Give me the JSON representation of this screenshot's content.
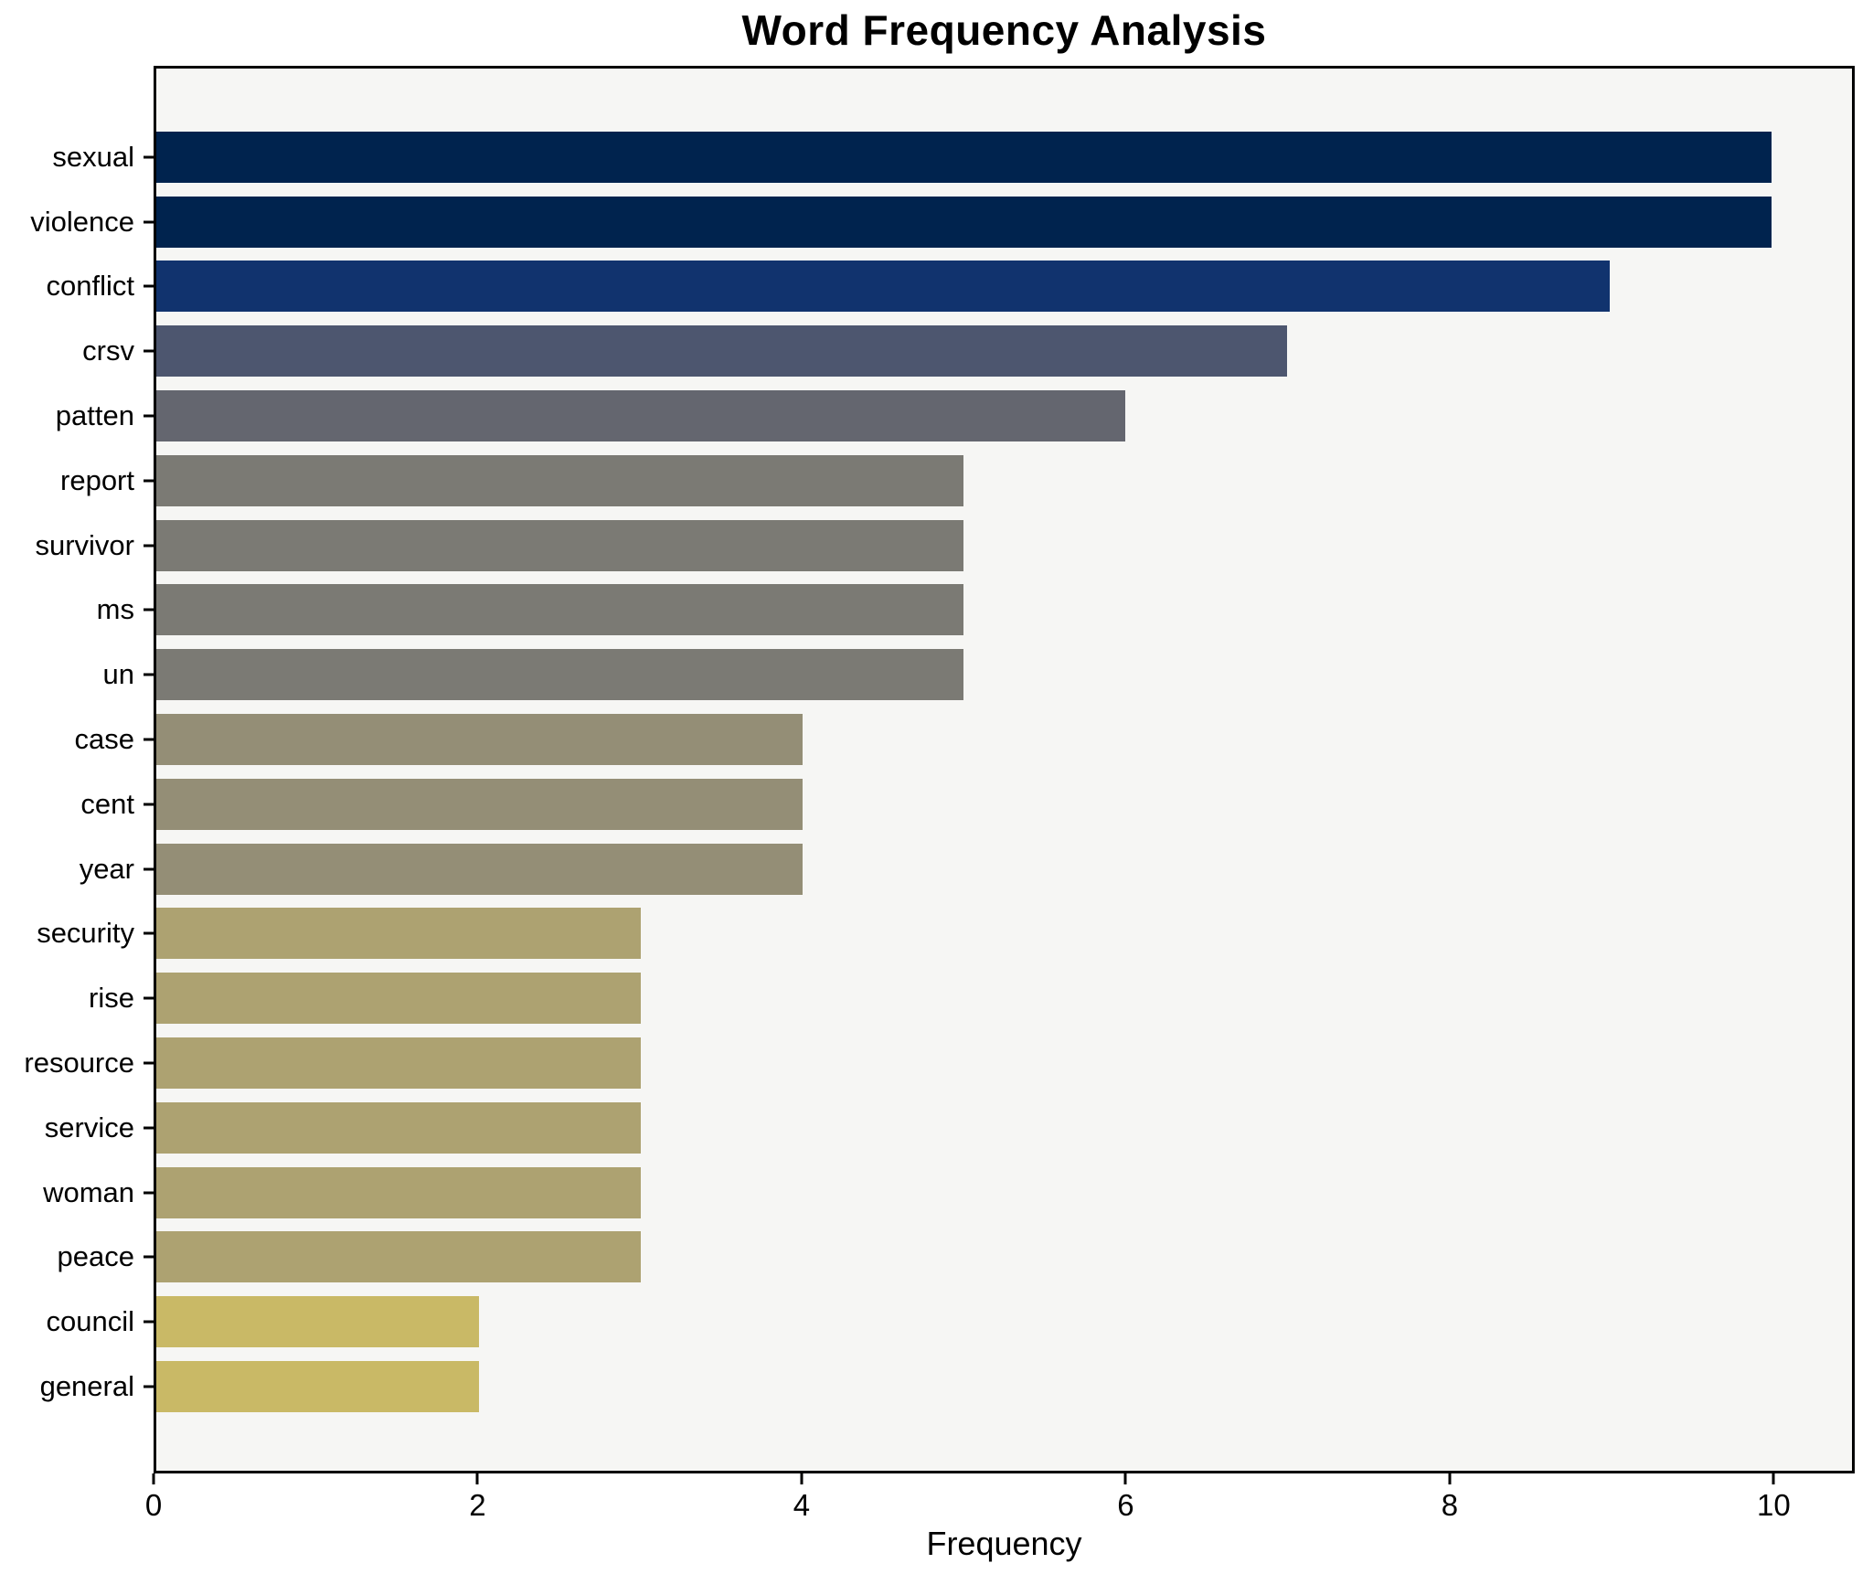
{
  "chart_data": {
    "type": "bar",
    "orientation": "horizontal",
    "title": "Word Frequency Analysis",
    "xlabel": "Frequency",
    "ylabel": "",
    "xlim": [
      0,
      10.5
    ],
    "x_ticks": [
      0,
      2,
      4,
      6,
      8,
      10
    ],
    "grid": false,
    "legend": false,
    "fig_bg": "#ffffff",
    "plot_bg": "#f6f6f4",
    "frame_color": "#000000",
    "categories": [
      "sexual",
      "violence",
      "conflict",
      "crsv",
      "patten",
      "report",
      "survivor",
      "ms",
      "un",
      "case",
      "cent",
      "year",
      "security",
      "rise",
      "resource",
      "service",
      "woman",
      "peace",
      "council",
      "general"
    ],
    "values": [
      10,
      10,
      9,
      7,
      6,
      5,
      5,
      5,
      5,
      4,
      4,
      4,
      3,
      3,
      3,
      3,
      3,
      3,
      2,
      2
    ],
    "bar_colors": [
      "#00234e",
      "#00234e",
      "#11336e",
      "#4d566f",
      "#64666f",
      "#7b7a74",
      "#7b7a74",
      "#7b7a74",
      "#7b7a74",
      "#948e76",
      "#948e76",
      "#948e76",
      "#ada271",
      "#ada271",
      "#ada271",
      "#ada271",
      "#ada271",
      "#ada271",
      "#c9b966",
      "#c9b966"
    ]
  }
}
